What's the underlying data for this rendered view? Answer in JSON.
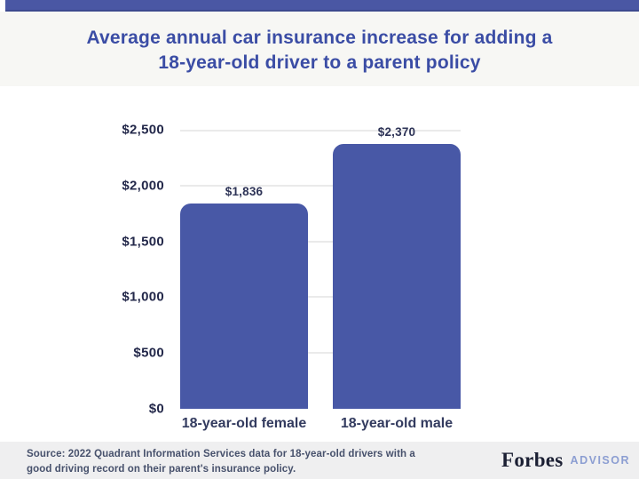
{
  "header": {
    "accent_color": "#4a57a4"
  },
  "title": {
    "line1": "Average annual car insurance increase for adding a",
    "line2": "18-year-old driver to a parent policy",
    "color": "#3b4da5"
  },
  "chart_data": {
    "type": "bar",
    "title": "Average annual car insurance increase for adding a 18-year-old driver to a parent policy",
    "categories": [
      "18-year-old female",
      "18-year-old male"
    ],
    "values": [
      1836,
      2370
    ],
    "value_labels": [
      "$1,836",
      "$2,370"
    ],
    "y_ticks": [
      0,
      500,
      1000,
      1500,
      2000,
      2500
    ],
    "y_tick_labels": [
      "$0",
      "$500",
      "$1,000",
      "$1,500",
      "$2,000",
      "$2,500"
    ],
    "ylim": [
      0,
      2500
    ],
    "grid": true,
    "legend": "none",
    "xlabel": "",
    "ylabel": "",
    "bar_color": "#4858a6"
  },
  "footer": {
    "source_line1": "Source: 2022 Quadrant Information Services data for 18-year-old drivers with a",
    "source_line2": "good driving record on their parent's insurance policy.",
    "brand_name": "Forbes",
    "brand_suffix": "ADVISOR"
  }
}
